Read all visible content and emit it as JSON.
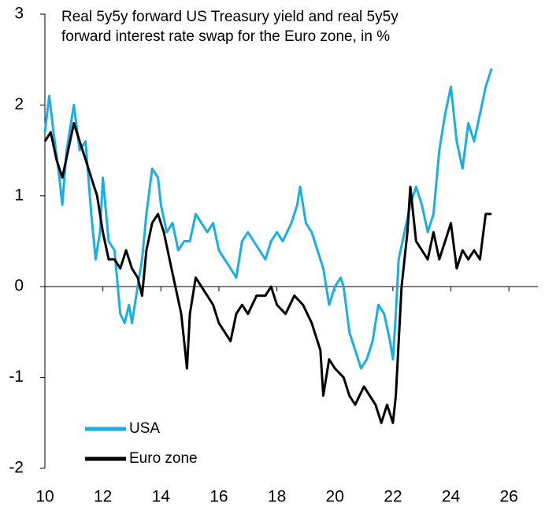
{
  "chart_data": {
    "type": "line",
    "title": [
      "Real 5y5y forward US Treasury yield and real 5y5y",
      "forward interest rate swap for the Euro zone, in %"
    ],
    "xlim": [
      10,
      27
    ],
    "xticks": [
      10,
      12,
      14,
      16,
      18,
      20,
      22,
      24,
      26
    ],
    "ylim": [
      -2,
      3
    ],
    "yticks": [
      -2,
      -1,
      0,
      1,
      2,
      3
    ],
    "series": [
      {
        "name": "USA",
        "color": "#1aaee6",
        "x": [
          10.0,
          10.15,
          10.3,
          10.5,
          10.6,
          10.75,
          11.0,
          11.2,
          11.4,
          11.6,
          11.75,
          11.9,
          12.0,
          12.2,
          12.4,
          12.6,
          12.75,
          12.9,
          13.0,
          13.2,
          13.35,
          13.5,
          13.7,
          13.9,
          14.0,
          14.2,
          14.4,
          14.6,
          14.8,
          15.0,
          15.2,
          15.4,
          15.6,
          15.8,
          16.0,
          16.2,
          16.4,
          16.6,
          16.8,
          17.0,
          17.2,
          17.4,
          17.6,
          17.8,
          18.0,
          18.2,
          18.5,
          18.7,
          18.8,
          19.0,
          19.2,
          19.4,
          19.6,
          19.8,
          20.0,
          20.2,
          20.3,
          20.5,
          20.7,
          20.9,
          21.1,
          21.3,
          21.5,
          21.7,
          21.9,
          22.0,
          22.1,
          22.2,
          22.4,
          22.6,
          22.8,
          23.0,
          23.2,
          23.4,
          23.6,
          23.8,
          24.0,
          24.2,
          24.4,
          24.6,
          24.8,
          25.0,
          25.2,
          25.4
        ],
        "values": [
          1.7,
          2.1,
          1.7,
          1.2,
          0.9,
          1.5,
          2.0,
          1.5,
          1.6,
          0.8,
          0.3,
          0.6,
          1.2,
          0.5,
          0.4,
          -0.3,
          -0.4,
          -0.2,
          -0.4,
          0.0,
          0.3,
          0.8,
          1.3,
          1.2,
          0.9,
          0.6,
          0.7,
          0.4,
          0.5,
          0.5,
          0.8,
          0.7,
          0.6,
          0.7,
          0.4,
          0.3,
          0.2,
          0.1,
          0.5,
          0.6,
          0.5,
          0.4,
          0.3,
          0.5,
          0.6,
          0.5,
          0.7,
          0.9,
          1.1,
          0.7,
          0.6,
          0.4,
          0.2,
          -0.2,
          0.0,
          0.1,
          0.0,
          -0.5,
          -0.7,
          -0.9,
          -0.8,
          -0.6,
          -0.2,
          -0.3,
          -0.6,
          -0.8,
          -0.3,
          0.3,
          0.6,
          0.9,
          1.1,
          0.9,
          0.6,
          0.8,
          1.5,
          1.9,
          2.2,
          1.6,
          1.3,
          1.8,
          1.6,
          1.9,
          2.2,
          2.4
        ]
      },
      {
        "name": "Euro zone",
        "color": "#000000",
        "x": [
          10.0,
          10.2,
          10.4,
          10.6,
          10.8,
          11.0,
          11.2,
          11.4,
          11.6,
          11.8,
          12.0,
          12.2,
          12.4,
          12.6,
          12.8,
          13.0,
          13.2,
          13.35,
          13.5,
          13.7,
          13.9,
          14.1,
          14.3,
          14.5,
          14.7,
          14.8,
          14.9,
          15.0,
          15.2,
          15.4,
          15.6,
          15.8,
          16.0,
          16.2,
          16.4,
          16.6,
          16.8,
          17.0,
          17.3,
          17.6,
          17.8,
          18.0,
          18.3,
          18.6,
          18.9,
          19.2,
          19.5,
          19.6,
          19.8,
          20.0,
          20.3,
          20.5,
          20.7,
          21.0,
          21.2,
          21.4,
          21.6,
          21.8,
          22.0,
          22.1,
          22.3,
          22.5,
          22.6,
          22.8,
          23.0,
          23.2,
          23.4,
          23.6,
          23.8,
          24.0,
          24.2,
          24.4,
          24.6,
          24.8,
          25.0,
          25.2,
          25.4
        ],
        "values": [
          1.6,
          1.7,
          1.4,
          1.2,
          1.5,
          1.8,
          1.6,
          1.4,
          1.2,
          1.0,
          0.6,
          0.3,
          0.3,
          0.2,
          0.4,
          0.2,
          0.1,
          -0.1,
          0.4,
          0.7,
          0.8,
          0.6,
          0.3,
          0.0,
          -0.3,
          -0.6,
          -0.9,
          -0.3,
          0.1,
          0.0,
          -0.1,
          -0.2,
          -0.4,
          -0.5,
          -0.6,
          -0.3,
          -0.2,
          -0.3,
          -0.1,
          -0.1,
          0.0,
          -0.2,
          -0.3,
          -0.1,
          -0.2,
          -0.4,
          -0.7,
          -1.2,
          -0.8,
          -0.9,
          -1.0,
          -1.2,
          -1.3,
          -1.1,
          -1.2,
          -1.3,
          -1.5,
          -1.3,
          -1.5,
          -1.2,
          0.0,
          0.6,
          1.1,
          0.5,
          0.4,
          0.3,
          0.6,
          0.3,
          0.5,
          0.7,
          0.2,
          0.4,
          0.3,
          0.4,
          0.3,
          0.8,
          0.8
        ]
      }
    ]
  }
}
